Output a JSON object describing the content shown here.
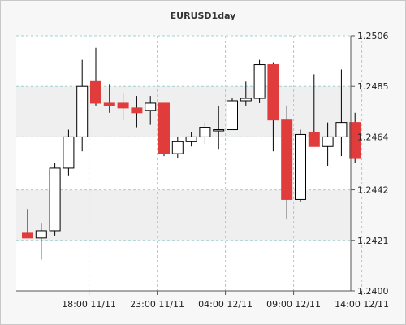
{
  "chart_data": {
    "type": "candlestick",
    "title": "EURUSD1day",
    "y_axis": {
      "position": "right",
      "ylim": [
        1.24,
        1.2506
      ],
      "ticks": [
        "1.2506",
        "1.2485",
        "1.2464",
        "1.2442",
        "1.2421",
        "1.2400"
      ],
      "tick_values": [
        1.2506,
        1.2485,
        1.2464,
        1.2442,
        1.2421,
        1.24
      ]
    },
    "x_axis": {
      "ticks": [
        "18:00 11/11",
        "23:00 11/11",
        "04:00 12/11",
        "09:00 12/11",
        "14:00 12/11"
      ],
      "tick_index": [
        4.5,
        9.5,
        14.5,
        19.5,
        24.5
      ]
    },
    "grid": true,
    "colors": {
      "up_body": "#ffffff",
      "down_body": "#e03c3c",
      "candle_outline": "#000000",
      "grid": "#9fd0d0",
      "band": "#efefef",
      "plot_bg": "#ffffff",
      "frame_bg": "#f7f7f7"
    },
    "candles": [
      {
        "open": 1.2424,
        "high": 1.2434,
        "low": 1.2422,
        "close": 1.2422
      },
      {
        "open": 1.2422,
        "high": 1.2428,
        "low": 1.2413,
        "close": 1.2425
      },
      {
        "open": 1.2425,
        "high": 1.2453,
        "low": 1.2423,
        "close": 1.2451
      },
      {
        "open": 1.2451,
        "high": 1.2467,
        "low": 1.2448,
        "close": 1.2464
      },
      {
        "open": 1.2464,
        "high": 1.2496,
        "low": 1.2458,
        "close": 1.2485
      },
      {
        "open": 1.2487,
        "high": 1.2501,
        "low": 1.2477,
        "close": 1.2478
      },
      {
        "open": 1.2478,
        "high": 1.2486,
        "low": 1.2474,
        "close": 1.2477
      },
      {
        "open": 1.2478,
        "high": 1.2482,
        "low": 1.2471,
        "close": 1.2476
      },
      {
        "open": 1.2476,
        "high": 1.2481,
        "low": 1.2468,
        "close": 1.2474
      },
      {
        "open": 1.2475,
        "high": 1.2481,
        "low": 1.2469,
        "close": 1.2478
      },
      {
        "open": 1.2478,
        "high": 1.2478,
        "low": 1.2456,
        "close": 1.2457
      },
      {
        "open": 1.2457,
        "high": 1.2464,
        "low": 1.2455,
        "close": 1.2462
      },
      {
        "open": 1.2462,
        "high": 1.2466,
        "low": 1.246,
        "close": 1.2464
      },
      {
        "open": 1.2464,
        "high": 1.247,
        "low": 1.2461,
        "close": 1.2468
      },
      {
        "open": 1.2467,
        "high": 1.2477,
        "low": 1.2459,
        "close": 1.2467
      },
      {
        "open": 1.2467,
        "high": 1.248,
        "low": 1.2467,
        "close": 1.2479
      },
      {
        "open": 1.2479,
        "high": 1.2487,
        "low": 1.2477,
        "close": 1.248
      },
      {
        "open": 1.248,
        "high": 1.2496,
        "low": 1.2478,
        "close": 1.2494
      },
      {
        "open": 1.2494,
        "high": 1.2495,
        "low": 1.2458,
        "close": 1.2471
      },
      {
        "open": 1.2471,
        "high": 1.2477,
        "low": 1.243,
        "close": 1.2438
      },
      {
        "open": 1.2438,
        "high": 1.2467,
        "low": 1.2437,
        "close": 1.2465
      },
      {
        "open": 1.2466,
        "high": 1.249,
        "low": 1.246,
        "close": 1.246
      },
      {
        "open": 1.246,
        "high": 1.247,
        "low": 1.2452,
        "close": 1.2464
      },
      {
        "open": 1.2464,
        "high": 1.2492,
        "low": 1.2456,
        "close": 1.247
      },
      {
        "open": 1.247,
        "high": 1.2474,
        "low": 1.2453,
        "close": 1.2455
      }
    ]
  }
}
